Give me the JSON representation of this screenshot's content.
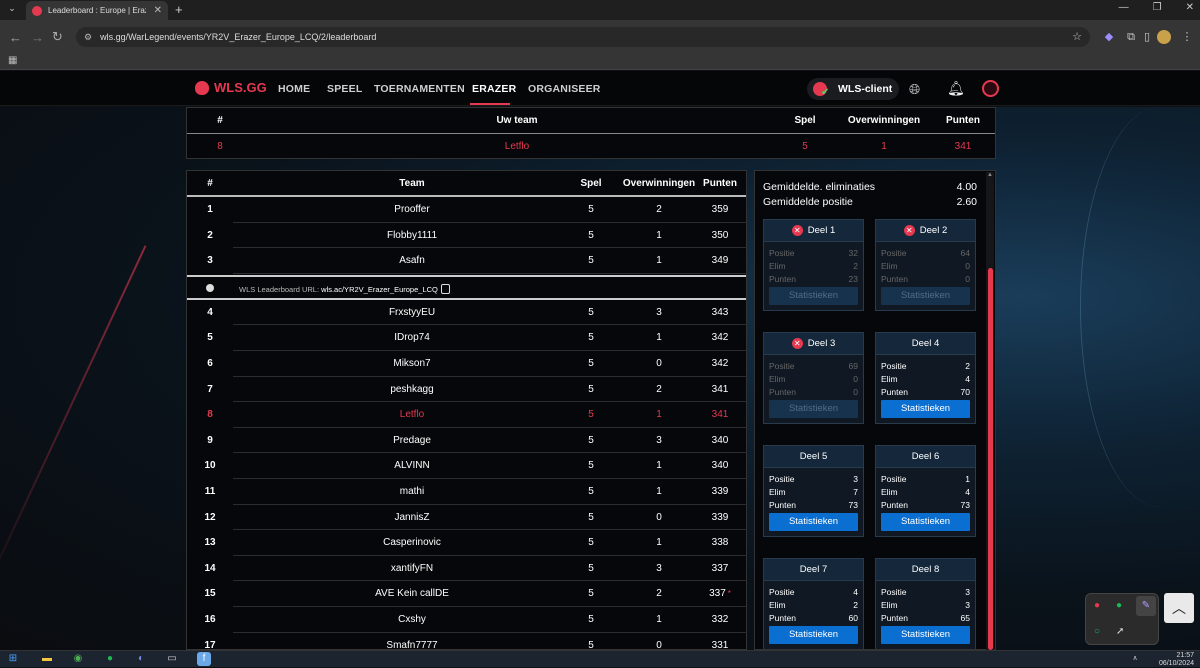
{
  "browser": {
    "tab_title": "Leaderboard : Europe | Erazer -",
    "url": "wls.gg/WarLegend/events/YR2V_Erazer_Europe_LCQ/2/leaderboard"
  },
  "nav": {
    "logo": "WLS.GG",
    "links": [
      "HOME",
      "SPEEL",
      "TOERNAMENTEN",
      "ERAZER",
      "ORGANISEER"
    ],
    "active": "ERAZER",
    "client_label": "WLS-client"
  },
  "your_team": {
    "headers": {
      "rank": "#",
      "team": "Uw team",
      "spel": "Spel",
      "wins": "Overwinningen",
      "points": "Punten"
    },
    "row": {
      "rank": "8",
      "team": "Letflo",
      "spel": "5",
      "wins": "1",
      "points": "341"
    }
  },
  "leaderboard": {
    "headers": {
      "rank": "#",
      "team": "Team",
      "spel": "Spel",
      "wins": "Overwinningen",
      "points": "Punten"
    },
    "url_label": "WLS Leaderboard URL:",
    "url_value": "wls.ac/YR2V_Erazer_Europe_LCQ",
    "rows": [
      {
        "rank": "1",
        "team": "Prooffer",
        "spel": "5",
        "wins": "2",
        "points": "359"
      },
      {
        "rank": "2",
        "team": "Flobby1111",
        "spel": "5",
        "wins": "1",
        "points": "350"
      },
      {
        "rank": "3",
        "team": "Asafn",
        "spel": "5",
        "wins": "1",
        "points": "349"
      },
      {
        "rank": "4",
        "team": "FrxstyyEU",
        "spel": "5",
        "wins": "3",
        "points": "343"
      },
      {
        "rank": "5",
        "team": "IDrop74",
        "spel": "5",
        "wins": "1",
        "points": "342"
      },
      {
        "rank": "6",
        "team": "Mikson7",
        "spel": "5",
        "wins": "0",
        "points": "342"
      },
      {
        "rank": "7",
        "team": "peshkagg",
        "spel": "5",
        "wins": "2",
        "points": "341"
      },
      {
        "rank": "8",
        "team": "Letflo",
        "spel": "5",
        "wins": "1",
        "points": "341",
        "highlight": true
      },
      {
        "rank": "9",
        "team": "Predage",
        "spel": "5",
        "wins": "3",
        "points": "340"
      },
      {
        "rank": "10",
        "team": "ALVINN",
        "spel": "5",
        "wins": "1",
        "points": "340"
      },
      {
        "rank": "11",
        "team": "mathi",
        "spel": "5",
        "wins": "1",
        "points": "339"
      },
      {
        "rank": "12",
        "team": "JannisZ",
        "spel": "5",
        "wins": "0",
        "points": "339"
      },
      {
        "rank": "13",
        "team": "Casperinovic",
        "spel": "5",
        "wins": "1",
        "points": "338"
      },
      {
        "rank": "14",
        "team": "xantifyFN",
        "spel": "5",
        "wins": "3",
        "points": "337"
      },
      {
        "rank": "15",
        "team": "AVE Kein callDE",
        "spel": "5",
        "wins": "2",
        "points": "337",
        "star": "*"
      },
      {
        "rank": "16",
        "team": "Cxshy",
        "spel": "5",
        "wins": "1",
        "points": "332"
      },
      {
        "rank": "17",
        "team": "Smafn7777",
        "spel": "5",
        "wins": "0",
        "points": "331"
      }
    ]
  },
  "stats_panel": {
    "avg_elims_label": "Gemiddelde. eliminaties",
    "avg_elims_value": "4.00",
    "avg_pos_label": "Gemiddelde positie",
    "avg_pos_value": "2.60",
    "labels": {
      "pos": "Positie",
      "elim": "Elim",
      "pts": "Punten",
      "button": "Statistieken"
    },
    "parts": [
      {
        "name": "Deel 1",
        "pos": "32",
        "elim": "2",
        "pts": "23",
        "failed": true
      },
      {
        "name": "Deel 2",
        "pos": "64",
        "elim": "0",
        "pts": "0",
        "failed": true
      },
      {
        "name": "Deel 3",
        "pos": "69",
        "elim": "0",
        "pts": "0",
        "failed": true
      },
      {
        "name": "Deel 4",
        "pos": "2",
        "elim": "4",
        "pts": "70",
        "failed": false
      },
      {
        "name": "Deel 5",
        "pos": "3",
        "elim": "7",
        "pts": "73",
        "failed": false
      },
      {
        "name": "Deel 6",
        "pos": "1",
        "elim": "4",
        "pts": "73",
        "failed": false
      },
      {
        "name": "Deel 7",
        "pos": "4",
        "elim": "2",
        "pts": "60",
        "failed": false
      },
      {
        "name": "Deel 8",
        "pos": "3",
        "elim": "3",
        "pts": "65",
        "failed": false
      }
    ]
  },
  "taskbar": {
    "time": "21:57",
    "date": "06/10/2024"
  }
}
